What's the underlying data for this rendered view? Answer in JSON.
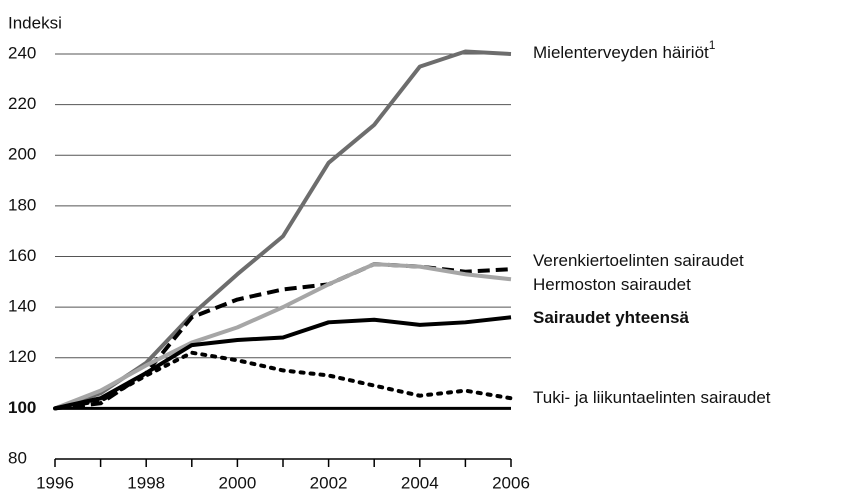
{
  "chart_data": {
    "type": "line",
    "y_axis_label": "Indeksi",
    "x": [
      1996,
      1997,
      1998,
      1999,
      2000,
      2001,
      2002,
      2003,
      2004,
      2005,
      2006
    ],
    "series": [
      {
        "name": "Mielenterveyden häiriöt",
        "note": "1",
        "color": "#6d6d6d",
        "style": "solid",
        "values": [
          100,
          106,
          118,
          137,
          153,
          168,
          197,
          212,
          235,
          241,
          240
        ]
      },
      {
        "name": "Verenkiertoelinten sairaudet",
        "color": "#000000",
        "style": "dashed",
        "values": [
          100,
          102,
          114,
          136,
          143,
          147,
          149,
          157,
          156,
          154,
          155
        ]
      },
      {
        "name": "Hermoston sairaudet",
        "color": "#a6a6a6",
        "style": "solid",
        "values": [
          100,
          107,
          117,
          126,
          132,
          140,
          149,
          157,
          156,
          153,
          151
        ]
      },
      {
        "name": "Sairaudet yhteensä",
        "color": "#000000",
        "style": "solid",
        "bold": true,
        "values": [
          100,
          104,
          114,
          125,
          127,
          128,
          134,
          135,
          133,
          134,
          136
        ]
      },
      {
        "name": "Tuki- ja liikuntaelinten sairaudet",
        "color": "#000000",
        "style": "dotted",
        "values": [
          100,
          103,
          113,
          122,
          119,
          115,
          113,
          109,
          105,
          107,
          104
        ]
      }
    ],
    "xlim": [
      1996,
      2006
    ],
    "xticks": [
      1996,
      1998,
      2000,
      2002,
      2004,
      2006
    ],
    "ylim": [
      80,
      240
    ],
    "yticks": [
      80,
      100,
      120,
      140,
      160,
      180,
      200,
      220,
      240
    ],
    "baseline": 100,
    "grid": true
  }
}
